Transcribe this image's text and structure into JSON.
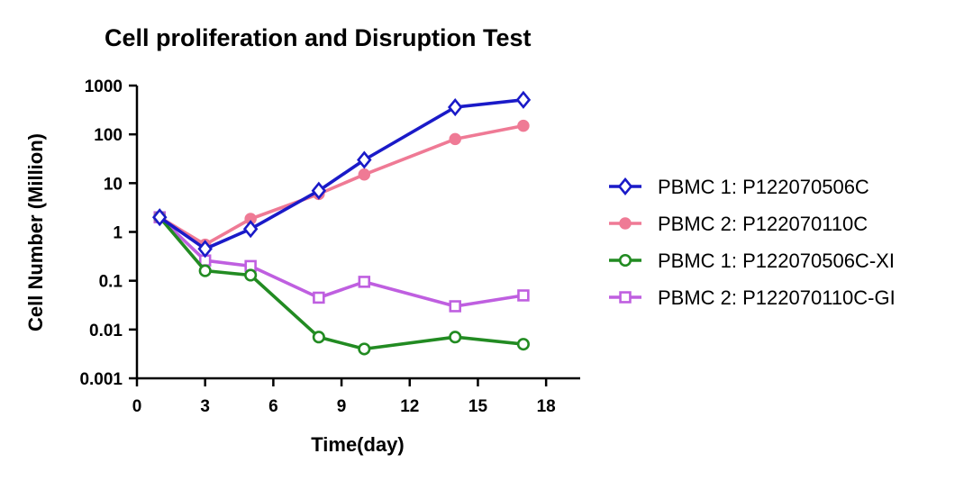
{
  "chart_data": {
    "type": "line",
    "title": "Cell proliferation and Disruption Test",
    "xlabel": "Time(day)",
    "ylabel": "Cell Number (Million)",
    "xlim": [
      0,
      19.5
    ],
    "ylim": [
      0.001,
      1000
    ],
    "yscale": "log",
    "xticks": [
      "0",
      "3",
      "6",
      "9",
      "12",
      "15",
      "18"
    ],
    "yticks": [
      "0.001",
      "0.01",
      "0.1",
      "1",
      "10",
      "100",
      "1000"
    ],
    "legend_position": "right",
    "grid": false,
    "series": [
      {
        "name": "PBMC 1: P122070506C",
        "color": "#1a1ac8",
        "marker": "diamond-open",
        "x": [
          1,
          3,
          5,
          8,
          10,
          14,
          17
        ],
        "y": [
          2,
          0.45,
          1.15,
          7,
          30,
          360,
          510
        ]
      },
      {
        "name": "PBMC 2: P122070110C",
        "color": "#ef7a95",
        "marker": "circle-filled",
        "x": [
          1,
          3,
          5,
          8,
          10,
          14,
          17
        ],
        "y": [
          2,
          0.55,
          1.85,
          6,
          15,
          80,
          150
        ]
      },
      {
        "name": "PBMC 1: P122070506C-XI",
        "color": "#228b22",
        "marker": "circle-open",
        "x": [
          1,
          3,
          5,
          8,
          10,
          14,
          17
        ],
        "y": [
          2,
          0.16,
          0.13,
          0.007,
          0.004,
          0.007,
          0.005
        ]
      },
      {
        "name": "PBMC 2: P122070110C-GI",
        "color": "#bf5fe0",
        "marker": "square-open",
        "x": [
          1,
          3,
          5,
          8,
          10,
          14,
          17
        ],
        "y": [
          2,
          0.26,
          0.2,
          0.045,
          0.095,
          0.03,
          0.05
        ]
      }
    ]
  }
}
